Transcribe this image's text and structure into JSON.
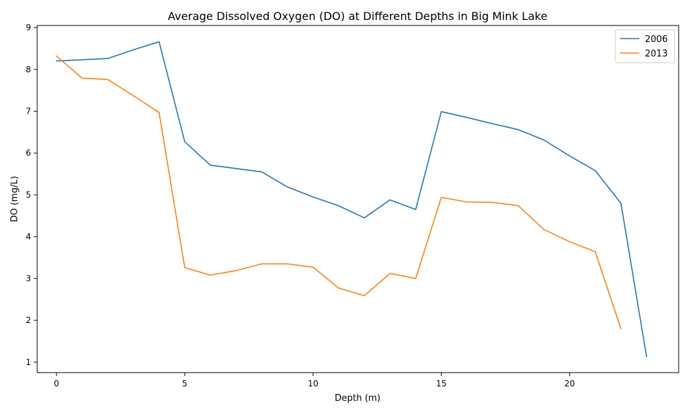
{
  "chart_data": {
    "type": "line",
    "title": "Average Dissolved Oxygen (DO) at Different Depths in Big Mink Lake",
    "xlabel": "Depth (m)",
    "ylabel": "DO (mg/L)",
    "xlim": [
      -0.75,
      24.25
    ],
    "ylim": [
      0.75,
      9.05
    ],
    "xticks": [
      0,
      5,
      10,
      15,
      20
    ],
    "yticks": [
      1,
      2,
      3,
      4,
      5,
      6,
      7,
      8,
      9
    ],
    "grid": false,
    "legend_position": "top-right",
    "series": [
      {
        "name": "2006",
        "color": "#1f77b4",
        "x": [
          0,
          1,
          2,
          3,
          4,
          5,
          6,
          7,
          8,
          9,
          10,
          11,
          12,
          13,
          14,
          15,
          16,
          17,
          18,
          19,
          20,
          21,
          22,
          23
        ],
        "y": [
          8.2,
          8.23,
          8.26,
          8.47,
          8.66,
          6.27,
          5.71,
          5.63,
          5.55,
          5.19,
          4.95,
          4.74,
          4.45,
          4.88,
          4.65,
          6.99,
          6.85,
          6.7,
          6.56,
          6.31,
          5.93,
          5.58,
          4.8,
          1.13
        ]
      },
      {
        "name": "2013",
        "color": "#ff7f0e",
        "x": [
          0,
          1,
          2,
          3,
          4,
          5,
          6,
          7,
          8,
          9,
          10,
          11,
          12,
          13,
          14,
          15,
          16,
          17,
          18,
          19,
          20,
          21,
          22
        ],
        "y": [
          8.32,
          7.79,
          7.76,
          7.37,
          6.97,
          3.26,
          3.08,
          3.19,
          3.35,
          3.35,
          3.27,
          2.77,
          2.59,
          3.12,
          3.0,
          4.94,
          4.83,
          4.82,
          4.74,
          4.17,
          3.88,
          3.64,
          1.8
        ]
      }
    ]
  }
}
